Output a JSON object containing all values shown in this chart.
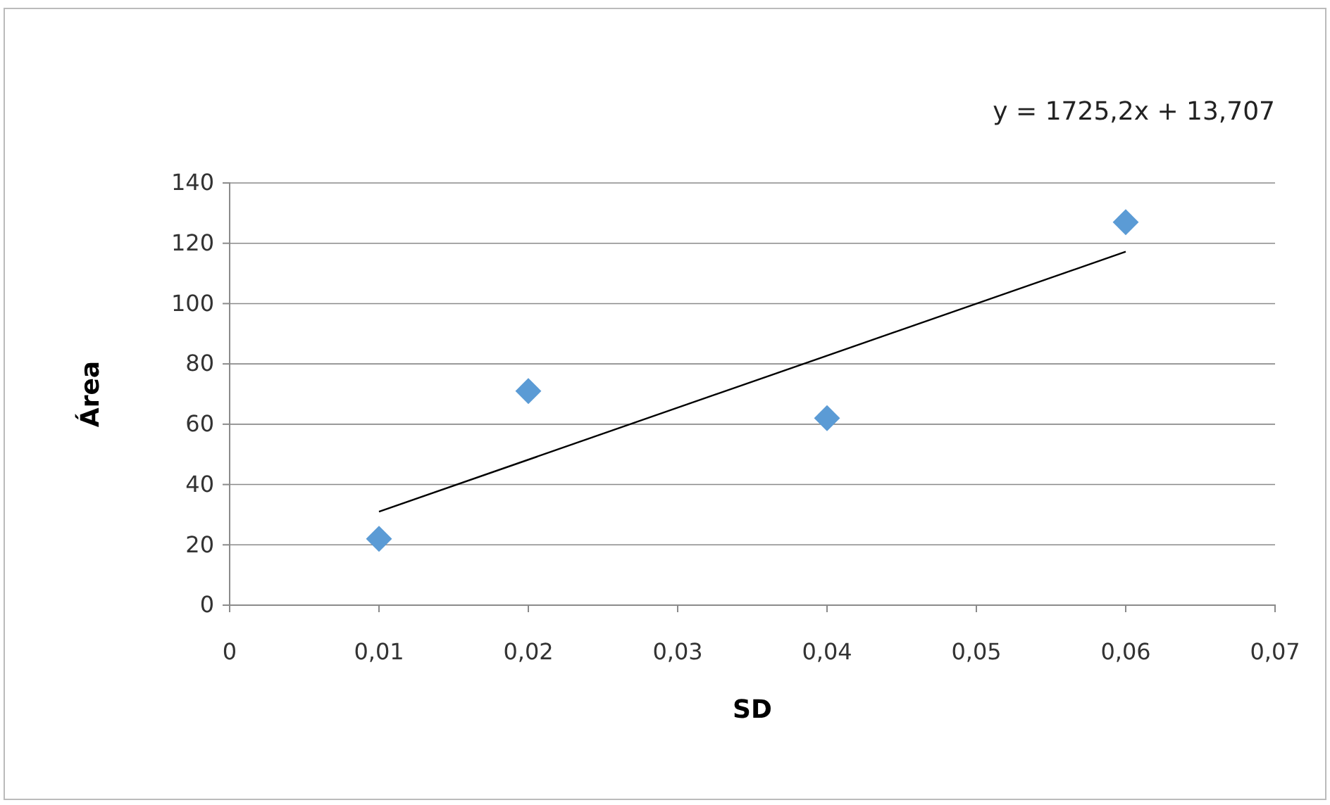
{
  "chart_data": {
    "type": "scatter",
    "xlabel": "SD",
    "ylabel": "Área",
    "annotations": [
      "y = 1725,2x + 13,707"
    ],
    "xlim": [
      0,
      0.07
    ],
    "xticks": [
      0,
      {
        "value": 0.01,
        "label": "0,01"
      },
      {
        "value": 0.02,
        "label": "0,02"
      },
      {
        "value": 0.03,
        "label": "0,03"
      },
      {
        "value": 0.04,
        "label": "0,04"
      },
      {
        "value": 0.05,
        "label": "0,05"
      },
      {
        "value": 0.06,
        "label": "0,06"
      },
      {
        "value": 0.07,
        "label": "0,07"
      }
    ],
    "ylim": [
      0,
      140
    ],
    "yticks": [
      0,
      20,
      40,
      60,
      80,
      100,
      120,
      140
    ],
    "grid": "y",
    "series": [
      {
        "marker": "diamond",
        "color": "#5b9bd5",
        "x": [
          0.01,
          0.02,
          0.04,
          0.06
        ],
        "values": [
          22,
          71,
          62,
          127
        ]
      },
      {
        "type": "line",
        "marker": "none",
        "color": "#000000",
        "x": [
          0.01,
          0.06
        ],
        "values": [
          31,
          117.2
        ]
      }
    ]
  }
}
